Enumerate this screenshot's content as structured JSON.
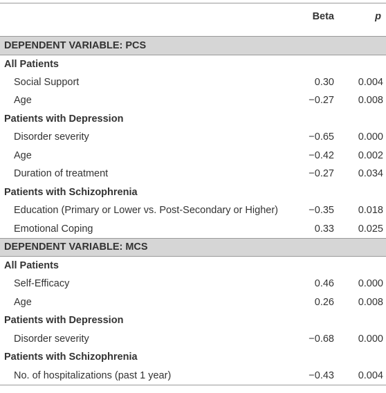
{
  "header": {
    "beta": "Beta",
    "p": "p"
  },
  "sections": [
    {
      "title": "DEPENDENT VARIABLE: PCS",
      "groups": [
        {
          "title": "All Patients",
          "rows": [
            {
              "label": "Social Support",
              "beta": "0.30",
              "p": "0.004"
            },
            {
              "label": "Age",
              "beta": "−0.27",
              "p": "0.008"
            }
          ]
        },
        {
          "title": "Patients with Depression",
          "rows": [
            {
              "label": "Disorder severity",
              "beta": "−0.65",
              "p": "0.000"
            },
            {
              "label": "Age",
              "beta": "−0.42",
              "p": "0.002"
            },
            {
              "label": "Duration of treatment",
              "beta": "−0.27",
              "p": "0.034"
            }
          ]
        },
        {
          "title": "Patients with Schizophrenia",
          "rows": [
            {
              "label": "Education (Primary or Lower vs. Post-Secondary or Higher)",
              "beta": "−0.35",
              "p": "0.018"
            },
            {
              "label": "Emotional Coping",
              "beta": "0.33",
              "p": "0.025"
            }
          ]
        }
      ]
    },
    {
      "title": "DEPENDENT VARIABLE: MCS",
      "groups": [
        {
          "title": "All Patients",
          "rows": [
            {
              "label": "Self-Efficacy",
              "beta": "0.46",
              "p": "0.000"
            },
            {
              "label": "Age",
              "beta": "0.26",
              "p": "0.008"
            }
          ]
        },
        {
          "title": "Patients with Depression",
          "rows": [
            {
              "label": "Disorder severity",
              "beta": "−0.68",
              "p": "0.000"
            }
          ]
        },
        {
          "title": "Patients with Schizophrenia",
          "rows": [
            {
              "label": "No. of hospitalizations (past 1 year)",
              "beta": "−0.43",
              "p": "0.004"
            }
          ]
        }
      ]
    }
  ]
}
